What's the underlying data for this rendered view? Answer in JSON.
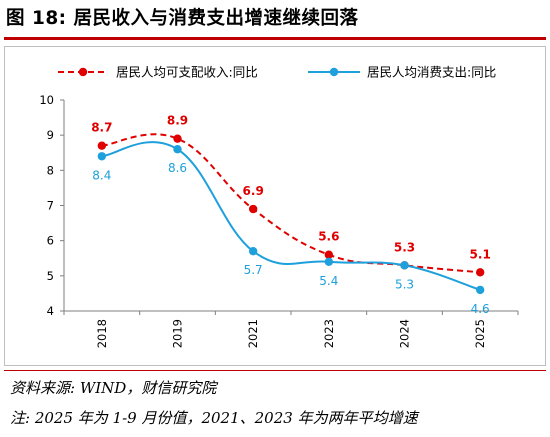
{
  "figure": {
    "title": "图 18:  居民收入与消费支出增速继续回落",
    "source": "资料来源: WIND，财信研究院",
    "note": "注: 2025 年为 1-9 月份值，2021、2023 年为两年平均增速"
  },
  "colors": {
    "income": "#e00000",
    "consumption": "#1ea0dc",
    "title_rule": "#c00000",
    "axis": "#7f7f7f"
  },
  "chart_data": {
    "type": "line",
    "categories": [
      "2018",
      "2019",
      "2021",
      "2023",
      "2024",
      "2025"
    ],
    "ylim": [
      4,
      10
    ],
    "yticks": [
      "4",
      "5",
      "6",
      "7",
      "8",
      "9",
      "10"
    ],
    "legend_position": "top",
    "grid": false,
    "series": [
      {
        "name": "居民人均可支配收入:同比",
        "values": [
          8.7,
          8.9,
          6.9,
          5.6,
          5.3,
          5.1
        ],
        "labels": [
          "8.7",
          "8.9",
          "6.9",
          "5.6",
          "5.3",
          "5.1"
        ],
        "style": "dashed",
        "smooth": true
      },
      {
        "name": "居民人均消费支出:同比",
        "values": [
          8.4,
          8.6,
          5.7,
          5.4,
          5.3,
          4.6
        ],
        "labels": [
          "8.4",
          "8.6",
          "5.7",
          "5.4",
          "5.3",
          "4.6"
        ],
        "style": "solid",
        "smooth": true
      }
    ]
  }
}
